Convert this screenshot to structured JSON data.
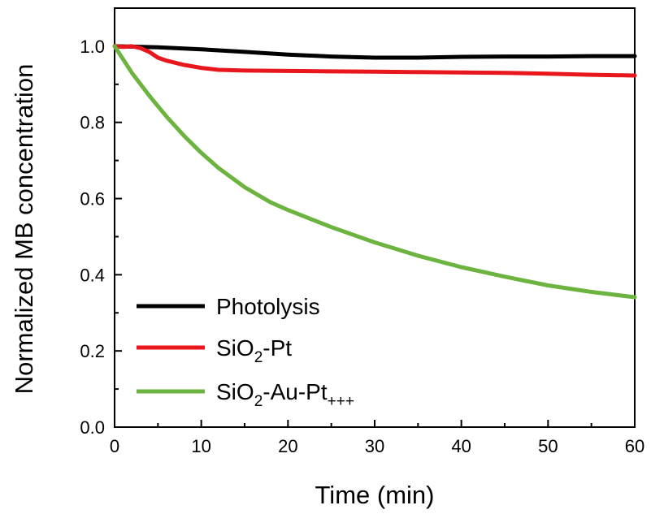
{
  "chart_data": {
    "type": "line",
    "xlabel": "Time (min)",
    "ylabel": "Normalized MB concentration",
    "xlim": [
      0,
      60
    ],
    "ylim": [
      0,
      1.1
    ],
    "x_ticks": [
      "0",
      "10",
      "20",
      "30",
      "40",
      "50",
      "60"
    ],
    "y_ticks": [
      "0.0",
      "0.2",
      "0.4",
      "0.6",
      "0.8",
      "1.0"
    ],
    "grid": false,
    "legend_position": "bottom-left",
    "series": [
      {
        "name": "Photolysis",
        "color": "#000000",
        "x": [
          0,
          5,
          10,
          15,
          20,
          25,
          30,
          35,
          40,
          45,
          50,
          55,
          60
        ],
        "y": [
          1.0,
          0.997,
          0.992,
          0.985,
          0.978,
          0.973,
          0.97,
          0.97,
          0.972,
          0.973,
          0.973,
          0.974,
          0.974
        ]
      },
      {
        "name_parts": [
          "SiO",
          "2",
          "-Pt"
        ],
        "color": "#e8161d",
        "x": [
          0,
          1,
          2,
          3,
          4,
          5,
          6,
          8,
          10,
          12,
          15,
          20,
          25,
          30,
          35,
          40,
          45,
          50,
          55,
          60
        ],
        "y": [
          1.0,
          0.998,
          1.0,
          0.995,
          0.985,
          0.97,
          0.962,
          0.951,
          0.943,
          0.938,
          0.936,
          0.935,
          0.934,
          0.933,
          0.932,
          0.931,
          0.93,
          0.928,
          0.925,
          0.923
        ]
      },
      {
        "name_parts": [
          "SiO",
          "2",
          "-Au-Pt",
          "+++"
        ],
        "color": "#6cb43f",
        "x": [
          0,
          2,
          4,
          6,
          8,
          10,
          12,
          15,
          18,
          20,
          25,
          30,
          35,
          40,
          45,
          50,
          55,
          60
        ],
        "y": [
          1.0,
          0.93,
          0.87,
          0.815,
          0.765,
          0.72,
          0.68,
          0.63,
          0.59,
          0.57,
          0.525,
          0.485,
          0.45,
          0.42,
          0.395,
          0.372,
          0.355,
          0.341
        ]
      }
    ]
  }
}
